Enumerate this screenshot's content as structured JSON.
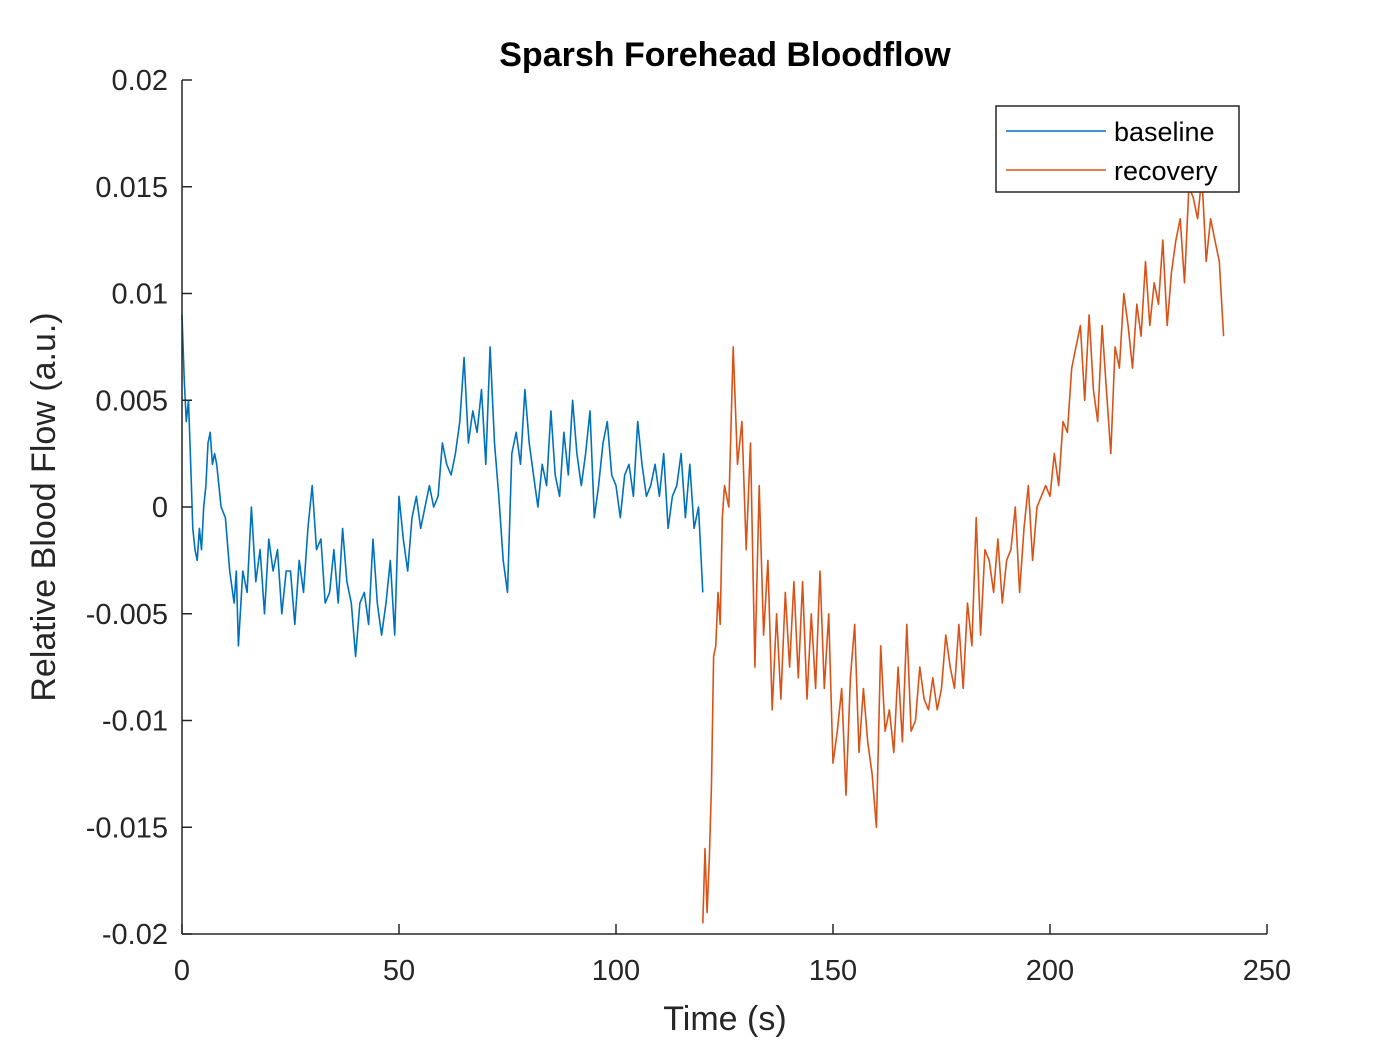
{
  "chart_data": {
    "type": "line",
    "title": "Sparsh Forehead Bloodflow",
    "xlabel": "Time (s)",
    "ylabel": "Relative Blood Flow (a.u.)",
    "xlim": [
      0,
      250
    ],
    "ylim": [
      -0.02,
      0.02
    ],
    "xticks": [
      0,
      50,
      100,
      150,
      200,
      250
    ],
    "xtick_labels": [
      "0",
      "50",
      "100",
      "150",
      "200",
      "250"
    ],
    "yticks": [
      -0.02,
      -0.015,
      -0.01,
      -0.005,
      0,
      0.005,
      0.01,
      0.015,
      0.02
    ],
    "ytick_labels": [
      "-0.02",
      "-0.015",
      "-0.01",
      "-0.005",
      "0",
      "0.005",
      "0.01",
      "0.015",
      "0.02"
    ],
    "grid": false,
    "legend_position": "top-right",
    "series": [
      {
        "name": "baseline",
        "color": "#0072BD",
        "x": [
          0,
          0.5,
          1,
          1.5,
          2,
          2.5,
          3,
          3.5,
          4,
          4.5,
          5,
          5.5,
          6,
          6.5,
          7,
          7.5,
          8,
          9,
          10,
          11,
          12,
          12.5,
          13,
          14,
          15,
          16,
          17,
          18,
          19,
          20,
          21,
          22,
          23,
          24,
          25,
          26,
          27,
          28,
          29,
          30,
          31,
          32,
          33,
          34,
          35,
          36,
          37,
          38,
          39,
          40,
          41,
          42,
          43,
          44,
          45,
          46,
          47,
          48,
          49,
          50,
          51,
          52,
          53,
          54,
          55,
          56,
          57,
          58,
          59,
          60,
          61,
          62,
          63,
          64,
          65,
          66,
          67,
          68,
          69,
          70,
          71,
          72,
          73,
          74,
          75,
          76,
          77,
          78,
          79,
          80,
          81,
          82,
          83,
          84,
          85,
          86,
          87,
          88,
          89,
          90,
          91,
          92,
          93,
          94,
          95,
          96,
          97,
          98,
          99,
          100,
          101,
          102,
          103,
          104,
          105,
          106,
          107,
          108,
          109,
          110,
          111,
          112,
          113,
          114,
          115,
          116,
          117,
          118,
          119,
          120
        ],
        "values": [
          0.009,
          0.006,
          0.004,
          0.005,
          0.002,
          -0.001,
          -0.002,
          -0.0025,
          -0.001,
          -0.002,
          0,
          0.001,
          0.003,
          0.0035,
          0.002,
          0.0025,
          0.002,
          0,
          -0.0005,
          -0.003,
          -0.0045,
          -0.003,
          -0.0065,
          -0.003,
          -0.004,
          0,
          -0.0035,
          -0.002,
          -0.005,
          -0.0015,
          -0.003,
          -0.002,
          -0.005,
          -0.003,
          -0.003,
          -0.0055,
          -0.0025,
          -0.004,
          -0.001,
          0.001,
          -0.002,
          -0.0015,
          -0.0045,
          -0.004,
          -0.002,
          -0.0045,
          -0.001,
          -0.0035,
          -0.0045,
          -0.007,
          -0.0045,
          -0.004,
          -0.0055,
          -0.0015,
          -0.0045,
          -0.006,
          -0.0045,
          -0.0025,
          -0.006,
          0.0005,
          -0.0015,
          -0.003,
          -0.0005,
          0.0005,
          -0.001,
          0,
          0.001,
          0,
          0.0005,
          0.003,
          0.002,
          0.0015,
          0.0025,
          0.004,
          0.007,
          0.003,
          0.0045,
          0.0035,
          0.0055,
          0.002,
          0.0075,
          0.003,
          0.0005,
          -0.0025,
          -0.004,
          0.0025,
          0.0035,
          0.002,
          0.0055,
          0.003,
          0.0015,
          0,
          0.002,
          0.001,
          0.0045,
          0.0015,
          0.0005,
          0.0035,
          0.0015,
          0.005,
          0.0025,
          0.001,
          0.0025,
          0.0045,
          -0.0005,
          0.001,
          0.003,
          0.004,
          0.0015,
          0.001,
          -0.0005,
          0.0015,
          0.002,
          0.0005,
          0.004,
          0.002,
          0.0005,
          0.001,
          0.002,
          0.0005,
          0.0025,
          -0.001,
          0.0005,
          0.001,
          0.0025,
          -0.0005,
          0.002,
          -0.001,
          0,
          -0.004
        ]
      },
      {
        "name": "recovery",
        "color": "#D95319",
        "x": [
          120,
          120.5,
          121,
          121.5,
          122,
          122.5,
          123,
          123.5,
          124,
          124.5,
          125,
          126,
          127,
          128,
          129,
          130,
          131,
          132,
          133,
          134,
          135,
          136,
          137,
          138,
          139,
          140,
          141,
          142,
          143,
          144,
          145,
          146,
          147,
          148,
          149,
          150,
          151,
          152,
          153,
          154,
          155,
          156,
          157,
          158,
          159,
          160,
          161,
          162,
          163,
          164,
          165,
          166,
          167,
          168,
          169,
          170,
          171,
          172,
          173,
          174,
          175,
          176,
          177,
          178,
          179,
          180,
          181,
          182,
          183,
          184,
          185,
          186,
          187,
          188,
          189,
          190,
          191,
          192,
          193,
          194,
          195,
          196,
          197,
          198,
          199,
          200,
          201,
          202,
          203,
          204,
          205,
          206,
          207,
          208,
          209,
          210,
          211,
          212,
          213,
          214,
          215,
          216,
          217,
          218,
          219,
          220,
          221,
          222,
          223,
          224,
          225,
          226,
          227,
          228,
          229,
          230,
          231,
          232,
          233,
          234,
          235,
          236,
          237,
          238,
          239,
          240
        ],
        "values": [
          -0.0195,
          -0.016,
          -0.019,
          -0.0165,
          -0.013,
          -0.007,
          -0.0065,
          -0.004,
          -0.0055,
          -0.0005,
          0.001,
          0,
          0.0075,
          0.002,
          0.004,
          -0.002,
          0.003,
          -0.0075,
          0.001,
          -0.006,
          -0.0025,
          -0.0095,
          -0.005,
          -0.009,
          -0.004,
          -0.0075,
          -0.0035,
          -0.008,
          -0.0035,
          -0.009,
          -0.005,
          -0.0085,
          -0.003,
          -0.0085,
          -0.005,
          -0.012,
          -0.0105,
          -0.0085,
          -0.0135,
          -0.008,
          -0.0055,
          -0.0115,
          -0.0085,
          -0.011,
          -0.0125,
          -0.015,
          -0.0065,
          -0.0105,
          -0.0095,
          -0.0115,
          -0.0075,
          -0.011,
          -0.0055,
          -0.0105,
          -0.01,
          -0.0075,
          -0.009,
          -0.0095,
          -0.008,
          -0.0095,
          -0.0085,
          -0.006,
          -0.0075,
          -0.0085,
          -0.0055,
          -0.0085,
          -0.0045,
          -0.0065,
          -0.0005,
          -0.006,
          -0.002,
          -0.0025,
          -0.004,
          -0.0015,
          -0.0045,
          -0.0025,
          -0.002,
          0,
          -0.004,
          -0.001,
          0.001,
          -0.0025,
          0,
          0.0005,
          0.001,
          0.0005,
          0.0025,
          0.001,
          0.004,
          0.0035,
          0.0065,
          0.0075,
          0.0085,
          0.005,
          0.009,
          0.0055,
          0.004,
          0.0085,
          0.0055,
          0.0025,
          0.0075,
          0.0065,
          0.01,
          0.0085,
          0.0065,
          0.0095,
          0.008,
          0.0115,
          0.0085,
          0.0105,
          0.0095,
          0.0125,
          0.0085,
          0.011,
          0.0125,
          0.0135,
          0.0105,
          0.015,
          0.0145,
          0.0135,
          0.0155,
          0.0115,
          0.0135,
          0.0125,
          0.0115,
          0.008
        ]
      }
    ]
  }
}
